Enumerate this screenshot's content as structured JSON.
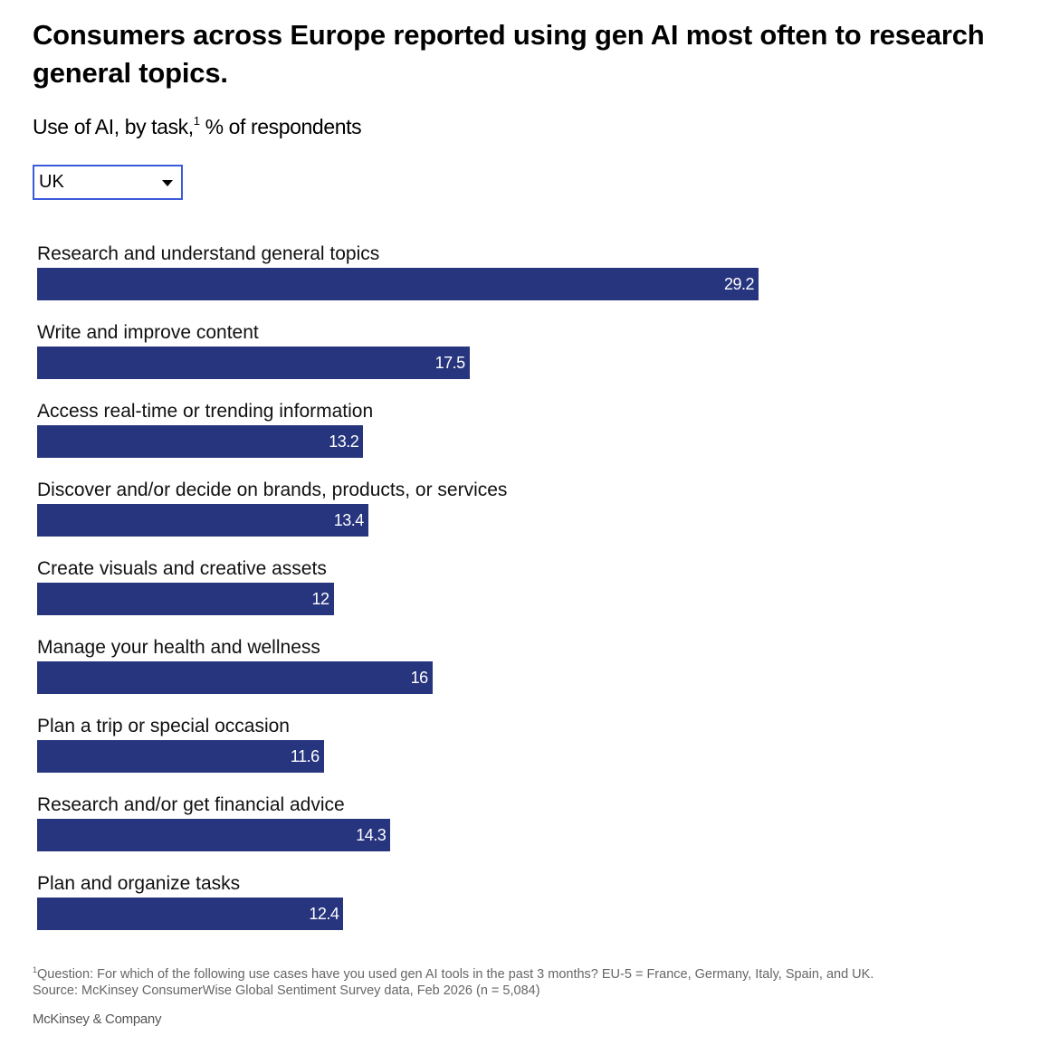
{
  "header": {
    "title": "Consumers across Europe reported using gen AI most often to research general topics.",
    "subtitle_main": "Use of AI, by task,",
    "subtitle_sup": "1",
    "subtitle_rest": " % of respondents"
  },
  "filter": {
    "selected": "UK",
    "icon": "caret-down-icon"
  },
  "colors": {
    "bar": "#27357e",
    "dropdown_border": "#3b5bdb"
  },
  "chart_data": {
    "type": "bar",
    "orientation": "horizontal",
    "title": "Consumers across Europe reported using gen AI most often to research general topics.",
    "subtitle": "Use of AI, by task, % of respondents",
    "xlabel": "",
    "ylabel": "",
    "xlim": [
      0,
      30
    ],
    "grid": false,
    "series_filter": "UK",
    "categories": [
      "Research and understand general topics",
      "Write and improve content",
      "Access real-time or trending information",
      "Discover and/or decide on brands, products, or services",
      "Create visuals and creative assets",
      "Manage your health and wellness",
      "Plan a trip or special occasion",
      "Research and/or get financial advice",
      "Plan and organize tasks"
    ],
    "values": [
      29.2,
      17.5,
      13.2,
      13.4,
      12,
      16,
      11.6,
      14.3,
      12.4
    ],
    "value_labels": [
      "29.2",
      "17.5",
      "13.2",
      "13.4",
      "12",
      "16",
      "11.6",
      "14.3",
      "12.4"
    ]
  },
  "footnote": {
    "sup": "1",
    "question": "Question: For which of the following use cases have you used gen AI tools in the past 3 months? EU-5 = France, Germany, Italy, Spain, and UK.",
    "source": "Source: McKinsey ConsumerWise Global Sentiment Survey data, Feb 2026 (n = 5,084)"
  },
  "brand": "McKinsey & Company"
}
